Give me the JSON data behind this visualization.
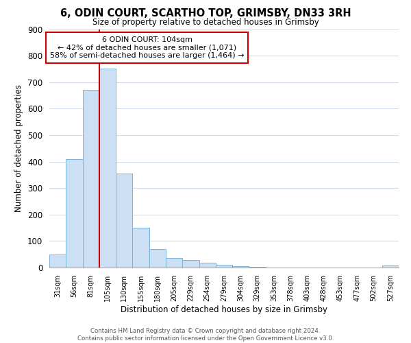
{
  "title": "6, ODIN COURT, SCARTHO TOP, GRIMSBY, DN33 3RH",
  "subtitle": "Size of property relative to detached houses in Grimsby",
  "xlabel": "Distribution of detached houses by size in Grimsby",
  "ylabel": "Number of detached properties",
  "bar_labels": [
    "31sqm",
    "56sqm",
    "81sqm",
    "105sqm",
    "130sqm",
    "155sqm",
    "180sqm",
    "205sqm",
    "229sqm",
    "254sqm",
    "279sqm",
    "304sqm",
    "329sqm",
    "353sqm",
    "378sqm",
    "403sqm",
    "428sqm",
    "453sqm",
    "477sqm",
    "502sqm",
    "527sqm"
  ],
  "bar_values": [
    50,
    410,
    670,
    750,
    355,
    150,
    70,
    37,
    28,
    17,
    10,
    5,
    2,
    1,
    0,
    0,
    0,
    0,
    0,
    0,
    8
  ],
  "bar_color": "#cce0f5",
  "bar_edge_color": "#7ab3d9",
  "vline_index": 3,
  "vline_color": "#cc0000",
  "ylim": [
    0,
    900
  ],
  "yticks": [
    0,
    100,
    200,
    300,
    400,
    500,
    600,
    700,
    800,
    900
  ],
  "annotation_text": "6 ODIN COURT: 104sqm\n← 42% of detached houses are smaller (1,071)\n58% of semi-detached houses are larger (1,464) →",
  "annotation_box_edge": "#cc0000",
  "footer_line1": "Contains HM Land Registry data © Crown copyright and database right 2024.",
  "footer_line2": "Contains public sector information licensed under the Open Government Licence v3.0.",
  "background_color": "#ffffff",
  "grid_color": "#d0dce8"
}
